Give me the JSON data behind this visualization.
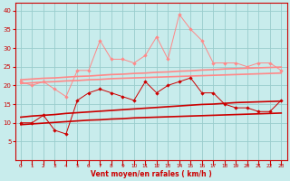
{
  "x": [
    0,
    1,
    2,
    3,
    4,
    5,
    6,
    7,
    8,
    9,
    10,
    11,
    12,
    13,
    14,
    15,
    16,
    17,
    18,
    19,
    20,
    21,
    22,
    23
  ],
  "light_zigzag": [
    21,
    20,
    21,
    19,
    17,
    24,
    24,
    32,
    27,
    27,
    26,
    28,
    33,
    27,
    39,
    35,
    32,
    26,
    26,
    26,
    25,
    26,
    26,
    24
  ],
  "dark_zigzag": [
    10,
    10,
    12,
    8,
    7,
    16,
    18,
    19,
    18,
    17,
    16,
    21,
    18,
    20,
    21,
    22,
    18,
    18,
    15,
    14,
    14,
    13,
    13,
    16
  ],
  "light_trend1": [
    21.5,
    21.7,
    21.9,
    22.0,
    22.2,
    22.4,
    22.5,
    22.7,
    22.9,
    23.0,
    23.2,
    23.3,
    23.5,
    23.6,
    23.8,
    23.9,
    24.1,
    24.2,
    24.4,
    24.5,
    24.6,
    24.7,
    24.8,
    24.9
  ],
  "light_trend2": [
    20.5,
    20.7,
    20.9,
    21.0,
    21.2,
    21.3,
    21.5,
    21.6,
    21.8,
    21.9,
    22.0,
    22.1,
    22.2,
    22.3,
    22.4,
    22.5,
    22.6,
    22.7,
    22.8,
    22.9,
    23.0,
    23.1,
    23.2,
    23.3
  ],
  "dark_trend1": [
    11.5,
    11.8,
    12.0,
    12.2,
    12.5,
    12.7,
    12.9,
    13.1,
    13.3,
    13.5,
    13.7,
    13.9,
    14.1,
    14.3,
    14.5,
    14.7,
    14.9,
    15.0,
    15.2,
    15.4,
    15.5,
    15.6,
    15.7,
    15.8
  ],
  "dark_trend2": [
    9.5,
    9.7,
    9.9,
    10.1,
    10.3,
    10.5,
    10.7,
    10.8,
    11.0,
    11.1,
    11.3,
    11.4,
    11.5,
    11.6,
    11.7,
    11.8,
    11.9,
    12.0,
    12.1,
    12.2,
    12.3,
    12.4,
    12.5,
    12.6
  ],
  "bg_color": "#c8ecec",
  "grid_color": "#99cccc",
  "light_color": "#ff8888",
  "dark_color": "#cc0000",
  "xlabel": "Vent moyen/en rafales ( km/h )",
  "ylim": [
    0,
    42
  ],
  "xlim": [
    -0.5,
    23.5
  ],
  "yticks": [
    5,
    10,
    15,
    20,
    25,
    30,
    35,
    40
  ],
  "xticks": [
    0,
    1,
    2,
    3,
    4,
    5,
    6,
    7,
    8,
    9,
    10,
    11,
    12,
    13,
    14,
    15,
    16,
    17,
    18,
    19,
    20,
    21,
    22,
    23
  ]
}
